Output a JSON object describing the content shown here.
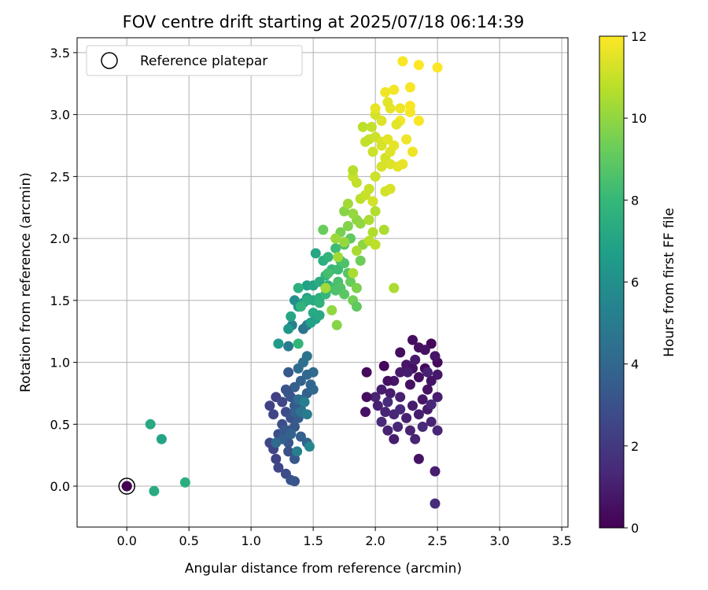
{
  "chart_data": {
    "type": "scatter",
    "title": "FOV centre drift starting at 2025/07/18 06:14:39",
    "xlabel": "Angular distance from reference (arcmin)",
    "ylabel": "Rotation from reference (arcmin)",
    "xlim": [
      -0.4,
      3.55
    ],
    "ylim": [
      -0.33,
      3.62
    ],
    "xticks": [
      "0.0",
      "0.5",
      "1.0",
      "1.5",
      "2.0",
      "2.5",
      "3.0",
      "3.5"
    ],
    "yticks": [
      "0.0",
      "0.5",
      "1.0",
      "1.5",
      "2.0",
      "2.5",
      "3.0",
      "3.5"
    ],
    "grid": true,
    "legend": {
      "position": "top-left",
      "entries": [
        "Reference platepar"
      ]
    },
    "reference_point": {
      "x": 0.0,
      "y": 0.0,
      "hours": 0
    },
    "colorbar": {
      "label": "Hours from first FF file",
      "range": [
        0,
        12
      ],
      "ticks": [
        "0",
        "2",
        "4",
        "6",
        "8",
        "10",
        "12"
      ],
      "colormap": "viridis",
      "stops": [
        "#440154",
        "#482878",
        "#3e4989",
        "#31688e",
        "#26828e",
        "#1f9e89",
        "#35b779",
        "#6ece58",
        "#b5de2b",
        "#fde725"
      ]
    },
    "points": [
      [
        0.0,
        0.0,
        0.0
      ],
      [
        2.5,
        1.0,
        0.3
      ],
      [
        2.45,
        1.15,
        0.2
      ],
      [
        2.3,
        1.18,
        0.4
      ],
      [
        2.35,
        1.12,
        0.5
      ],
      [
        2.2,
        1.08,
        0.4
      ],
      [
        2.4,
        1.1,
        0.6
      ],
      [
        2.25,
        0.98,
        0.7
      ],
      [
        2.3,
        0.95,
        0.5
      ],
      [
        2.4,
        0.95,
        0.3
      ],
      [
        2.5,
        0.9,
        0.8
      ],
      [
        2.45,
        0.85,
        0.6
      ],
      [
        2.35,
        0.88,
        0.4
      ],
      [
        2.2,
        0.92,
        0.9
      ],
      [
        2.15,
        0.85,
        0.7
      ],
      [
        2.28,
        0.82,
        0.5
      ],
      [
        2.42,
        0.78,
        0.6
      ],
      [
        2.5,
        0.72,
        1.0
      ],
      [
        2.38,
        0.7,
        0.8
      ],
      [
        2.3,
        0.65,
        0.9
      ],
      [
        2.2,
        0.72,
        1.1
      ],
      [
        2.12,
        0.75,
        1.0
      ],
      [
        2.05,
        0.78,
        0.9
      ],
      [
        2.0,
        0.72,
        1.2
      ],
      [
        2.02,
        0.65,
        1.1
      ],
      [
        2.08,
        0.6,
        1.2
      ],
      [
        2.15,
        0.58,
        1.3
      ],
      [
        2.25,
        0.55,
        1.1
      ],
      [
        2.35,
        0.58,
        1.0
      ],
      [
        2.45,
        0.52,
        1.2
      ],
      [
        2.5,
        0.45,
        1.3
      ],
      [
        2.38,
        0.48,
        1.4
      ],
      [
        2.28,
        0.45,
        1.2
      ],
      [
        2.18,
        0.48,
        1.3
      ],
      [
        2.1,
        0.45,
        1.1
      ],
      [
        2.15,
        0.38,
        1.0
      ],
      [
        2.05,
        0.52,
        1.4
      ],
      [
        1.92,
        0.6,
        0.6
      ],
      [
        1.93,
        0.72,
        0.4
      ],
      [
        1.93,
        0.92,
        0.3
      ],
      [
        2.07,
        0.97,
        0.2
      ],
      [
        2.1,
        0.85,
        0.5
      ],
      [
        2.48,
        1.05,
        0.7
      ],
      [
        2.32,
        1.02,
        0.9
      ],
      [
        2.26,
        0.92,
        1.0
      ],
      [
        2.42,
        0.62,
        0.9
      ],
      [
        2.32,
        0.38,
        1.2
      ],
      [
        2.48,
        0.12,
        1.0
      ],
      [
        2.48,
        -0.14,
        1.5
      ],
      [
        2.35,
        0.22,
        0.6
      ],
      [
        2.1,
        0.68,
        1.5
      ],
      [
        2.2,
        0.62,
        1.4
      ],
      [
        2.42,
        0.92,
        1.1
      ],
      [
        2.45,
        0.66,
        1.3
      ],
      [
        1.15,
        0.35,
        2.6
      ],
      [
        1.18,
        0.3,
        2.5
      ],
      [
        1.22,
        0.42,
        2.8
      ],
      [
        1.25,
        0.38,
        3.0
      ],
      [
        1.3,
        0.35,
        3.2
      ],
      [
        1.2,
        0.22,
        2.4
      ],
      [
        1.22,
        0.15,
        2.6
      ],
      [
        1.28,
        0.1,
        2.8
      ],
      [
        1.32,
        0.05,
        3.0
      ],
      [
        1.35,
        0.04,
        3.2
      ],
      [
        1.3,
        0.28,
        3.0
      ],
      [
        1.35,
        0.22,
        3.3
      ],
      [
        1.15,
        0.65,
        2.4
      ],
      [
        1.2,
        0.72,
        2.3
      ],
      [
        1.25,
        0.68,
        2.6
      ],
      [
        1.28,
        0.6,
        2.8
      ],
      [
        1.32,
        0.55,
        3.0
      ],
      [
        1.18,
        0.58,
        2.5
      ],
      [
        1.25,
        0.5,
        2.9
      ],
      [
        1.3,
        0.45,
        3.1
      ],
      [
        1.35,
        0.48,
        3.3
      ],
      [
        1.38,
        0.55,
        3.5
      ],
      [
        1.4,
        0.62,
        3.7
      ],
      [
        1.42,
        0.7,
        3.9
      ],
      [
        1.3,
        0.75,
        3.4
      ],
      [
        1.35,
        0.8,
        3.6
      ],
      [
        1.4,
        0.85,
        3.8
      ],
      [
        1.45,
        0.9,
        4.0
      ],
      [
        1.3,
        0.92,
        3.3
      ],
      [
        1.38,
        0.95,
        4.2
      ],
      [
        1.42,
        1.0,
        4.4
      ],
      [
        1.45,
        1.05,
        4.6
      ],
      [
        1.5,
        0.92,
        4.1
      ],
      [
        1.48,
        0.82,
        3.9
      ],
      [
        1.45,
        0.75,
        3.8
      ],
      [
        1.5,
        0.78,
        4.0
      ],
      [
        1.35,
        0.65,
        3.4
      ],
      [
        1.32,
        0.72,
        3.2
      ],
      [
        1.28,
        0.78,
        3.1
      ],
      [
        1.4,
        0.4,
        3.6
      ],
      [
        1.45,
        0.35,
        3.8
      ],
      [
        1.47,
        0.32,
        5.5
      ],
      [
        1.37,
        0.28,
        5.2
      ],
      [
        1.3,
        1.13,
        5.0
      ],
      [
        1.42,
        1.27,
        4.6
      ],
      [
        1.45,
        1.3,
        4.8
      ],
      [
        1.48,
        1.32,
        4.9
      ],
      [
        1.33,
        1.3,
        5.2
      ],
      [
        1.35,
        0.6,
        3.7
      ],
      [
        1.27,
        0.45,
        3.3
      ],
      [
        1.38,
        0.7,
        4.3
      ],
      [
        1.4,
        0.6,
        4.5
      ],
      [
        1.45,
        0.58,
        5.0
      ],
      [
        1.43,
        0.68,
        5.2
      ],
      [
        1.25,
        0.38,
        3.6
      ],
      [
        1.32,
        0.42,
        3.8
      ],
      [
        1.2,
        0.35,
        4.1
      ],
      [
        1.35,
        1.5,
        6.0
      ],
      [
        1.38,
        1.45,
        6.3
      ],
      [
        1.42,
        1.48,
        6.6
      ],
      [
        1.45,
        1.52,
        6.9
      ],
      [
        1.5,
        1.5,
        7.2
      ],
      [
        1.55,
        1.52,
        7.5
      ],
      [
        1.45,
        1.62,
        6.8
      ],
      [
        1.5,
        1.62,
        7.0
      ],
      [
        1.55,
        1.65,
        7.4
      ],
      [
        1.6,
        1.7,
        7.8
      ],
      [
        1.62,
        1.62,
        7.6
      ],
      [
        1.65,
        1.75,
        8.0
      ],
      [
        1.7,
        1.75,
        8.2
      ],
      [
        1.72,
        1.82,
        8.4
      ],
      [
        1.75,
        1.8,
        8.6
      ],
      [
        1.78,
        1.72,
        8.8
      ],
      [
        1.7,
        1.65,
        8.5
      ],
      [
        1.65,
        1.6,
        8.3
      ],
      [
        1.6,
        1.55,
        8.0
      ],
      [
        1.55,
        1.48,
        7.7
      ],
      [
        1.5,
        1.4,
        7.3
      ],
      [
        1.52,
        1.35,
        7.0
      ],
      [
        1.48,
        1.32,
        6.8
      ],
      [
        1.55,
        1.38,
        7.2
      ],
      [
        1.52,
        1.88,
        7.1
      ],
      [
        1.58,
        1.82,
        7.5
      ],
      [
        1.62,
        1.85,
        7.8
      ],
      [
        1.68,
        1.92,
        8.2
      ],
      [
        1.75,
        1.95,
        8.6
      ],
      [
        1.8,
        2.0,
        9.0
      ],
      [
        1.72,
        1.6,
        8.7
      ],
      [
        1.75,
        1.55,
        8.9
      ],
      [
        1.8,
        1.65,
        9.2
      ],
      [
        1.82,
        1.5,
        9.4
      ],
      [
        1.85,
        1.6,
        9.6
      ],
      [
        1.88,
        1.82,
        9.3
      ],
      [
        1.22,
        1.15,
        6.5
      ],
      [
        1.38,
        1.15,
        7.9
      ],
      [
        1.45,
        1.5,
        7.4
      ],
      [
        1.38,
        1.6,
        7.6
      ],
      [
        1.32,
        1.37,
        7.1
      ],
      [
        1.85,
        1.45,
        9.0
      ],
      [
        1.3,
        1.27,
        6.3
      ],
      [
        1.4,
        1.45,
        7.8
      ],
      [
        1.62,
        1.72,
        8.4
      ],
      [
        1.68,
        1.58,
        8.6
      ],
      [
        0.19,
        0.5,
        7.2
      ],
      [
        0.28,
        0.38,
        7.0
      ],
      [
        0.22,
        -0.04,
        7.3
      ],
      [
        0.47,
        0.03,
        7.5
      ],
      [
        1.58,
        2.07,
        9.2
      ],
      [
        1.72,
        2.05,
        9.5
      ],
      [
        1.78,
        2.1,
        9.7
      ],
      [
        1.85,
        2.15,
        9.9
      ],
      [
        1.88,
        2.12,
        10.0
      ],
      [
        1.82,
        2.2,
        10.1
      ],
      [
        1.75,
        2.22,
        9.8
      ],
      [
        1.9,
        1.95,
        9.9
      ],
      [
        1.75,
        1.97,
        10.1
      ],
      [
        1.68,
        2.0,
        10.2
      ],
      [
        1.7,
        1.85,
        10.3
      ],
      [
        1.65,
        1.42,
        10.0
      ],
      [
        1.69,
        1.3,
        9.8
      ],
      [
        1.78,
        2.28,
        10.3
      ],
      [
        1.85,
        1.9,
        10.4
      ],
      [
        1.82,
        1.72,
        10.5
      ],
      [
        1.6,
        1.6,
        10.3
      ],
      [
        1.95,
        2.15,
        10.5
      ],
      [
        1.98,
        2.05,
        10.6
      ],
      [
        1.95,
        1.98,
        10.7
      ],
      [
        2.0,
        1.95,
        10.8
      ],
      [
        2.07,
        2.07,
        10.5
      ],
      [
        2.0,
        2.22,
        10.6
      ],
      [
        1.88,
        2.32,
        10.8
      ],
      [
        1.92,
        2.35,
        11.0
      ],
      [
        1.98,
        2.3,
        11.2
      ],
      [
        1.95,
        2.4,
        11.0
      ],
      [
        2.08,
        2.38,
        11.2
      ],
      [
        2.12,
        2.4,
        11.3
      ],
      [
        1.85,
        2.45,
        10.9
      ],
      [
        1.82,
        2.5,
        11.0
      ],
      [
        1.82,
        2.55,
        10.7
      ],
      [
        2.0,
        2.5,
        11.1
      ],
      [
        2.05,
        2.58,
        11.3
      ],
      [
        2.08,
        2.65,
        11.2
      ],
      [
        2.12,
        2.6,
        11.4
      ],
      [
        2.18,
        2.58,
        11.5
      ],
      [
        2.22,
        2.6,
        11.6
      ],
      [
        2.3,
        2.7,
        11.7
      ],
      [
        2.12,
        2.7,
        11.4
      ],
      [
        2.05,
        2.75,
        11.3
      ],
      [
        1.98,
        2.7,
        11.1
      ],
      [
        1.95,
        2.8,
        11.0
      ],
      [
        2.0,
        2.82,
        11.1
      ],
      [
        2.05,
        2.78,
        11.3
      ],
      [
        2.1,
        2.8,
        11.5
      ],
      [
        2.15,
        2.75,
        11.6
      ],
      [
        2.25,
        2.8,
        11.7
      ],
      [
        1.92,
        2.78,
        10.9
      ],
      [
        1.9,
        2.9,
        10.8
      ],
      [
        1.97,
        2.9,
        10.9
      ],
      [
        2.0,
        3.0,
        11.2
      ],
      [
        2.05,
        2.95,
        11.4
      ],
      [
        2.12,
        3.05,
        11.6
      ],
      [
        2.2,
        3.05,
        11.7
      ],
      [
        2.28,
        3.02,
        11.8
      ],
      [
        2.28,
        3.07,
        11.9
      ],
      [
        2.2,
        2.95,
        11.8
      ],
      [
        2.35,
        2.95,
        11.9
      ],
      [
        2.1,
        3.1,
        11.5
      ],
      [
        2.08,
        3.18,
        11.7
      ],
      [
        2.15,
        3.2,
        11.8
      ],
      [
        2.28,
        3.22,
        11.9
      ],
      [
        2.22,
        3.43,
        11.9
      ],
      [
        2.35,
        3.4,
        12.0
      ],
      [
        2.5,
        3.38,
        12.0
      ],
      [
        2.15,
        1.6,
        10.5
      ],
      [
        2.17,
        2.92,
        11.5
      ],
      [
        2.0,
        3.05,
        11.6
      ]
    ]
  }
}
